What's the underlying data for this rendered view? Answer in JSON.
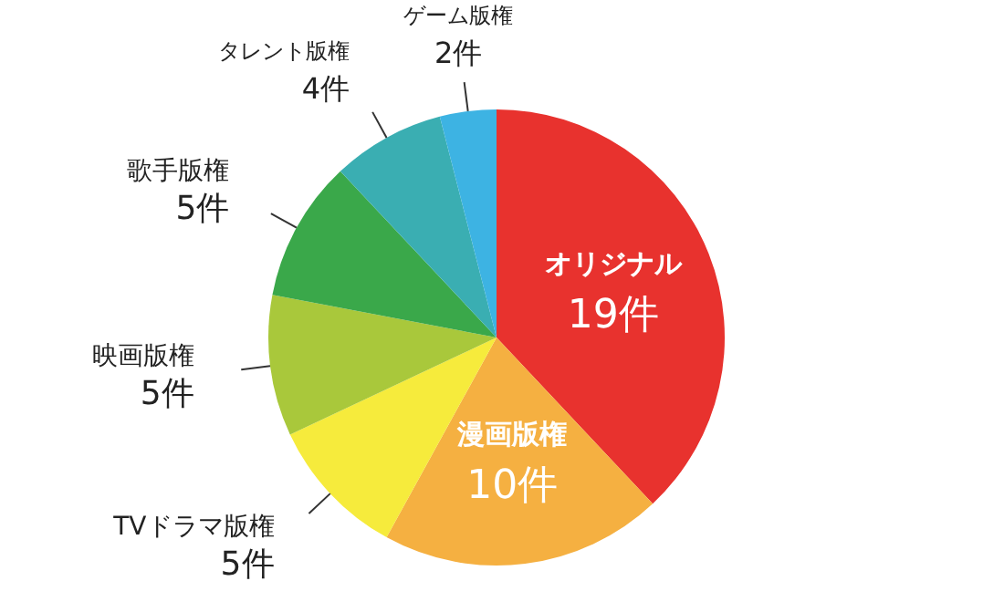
{
  "chart_data": {
    "type": "pie",
    "categories": [
      "オリジナル",
      "漫画版権",
      "TVドラマ版権",
      "映画版権",
      "歌手版権",
      "タレント版権",
      "ゲーム版権"
    ],
    "values": [
      19,
      10,
      5,
      5,
      5,
      4,
      2
    ],
    "value_labels": [
      "19件",
      "10件",
      "5件",
      "5件",
      "5件",
      "4件",
      "2件"
    ],
    "colors": [
      "#e8322e",
      "#f5b041",
      "#f6eb3c",
      "#a9c83b",
      "#3aa84a",
      "#3aaeb2",
      "#3db3e3"
    ],
    "legend": false
  }
}
